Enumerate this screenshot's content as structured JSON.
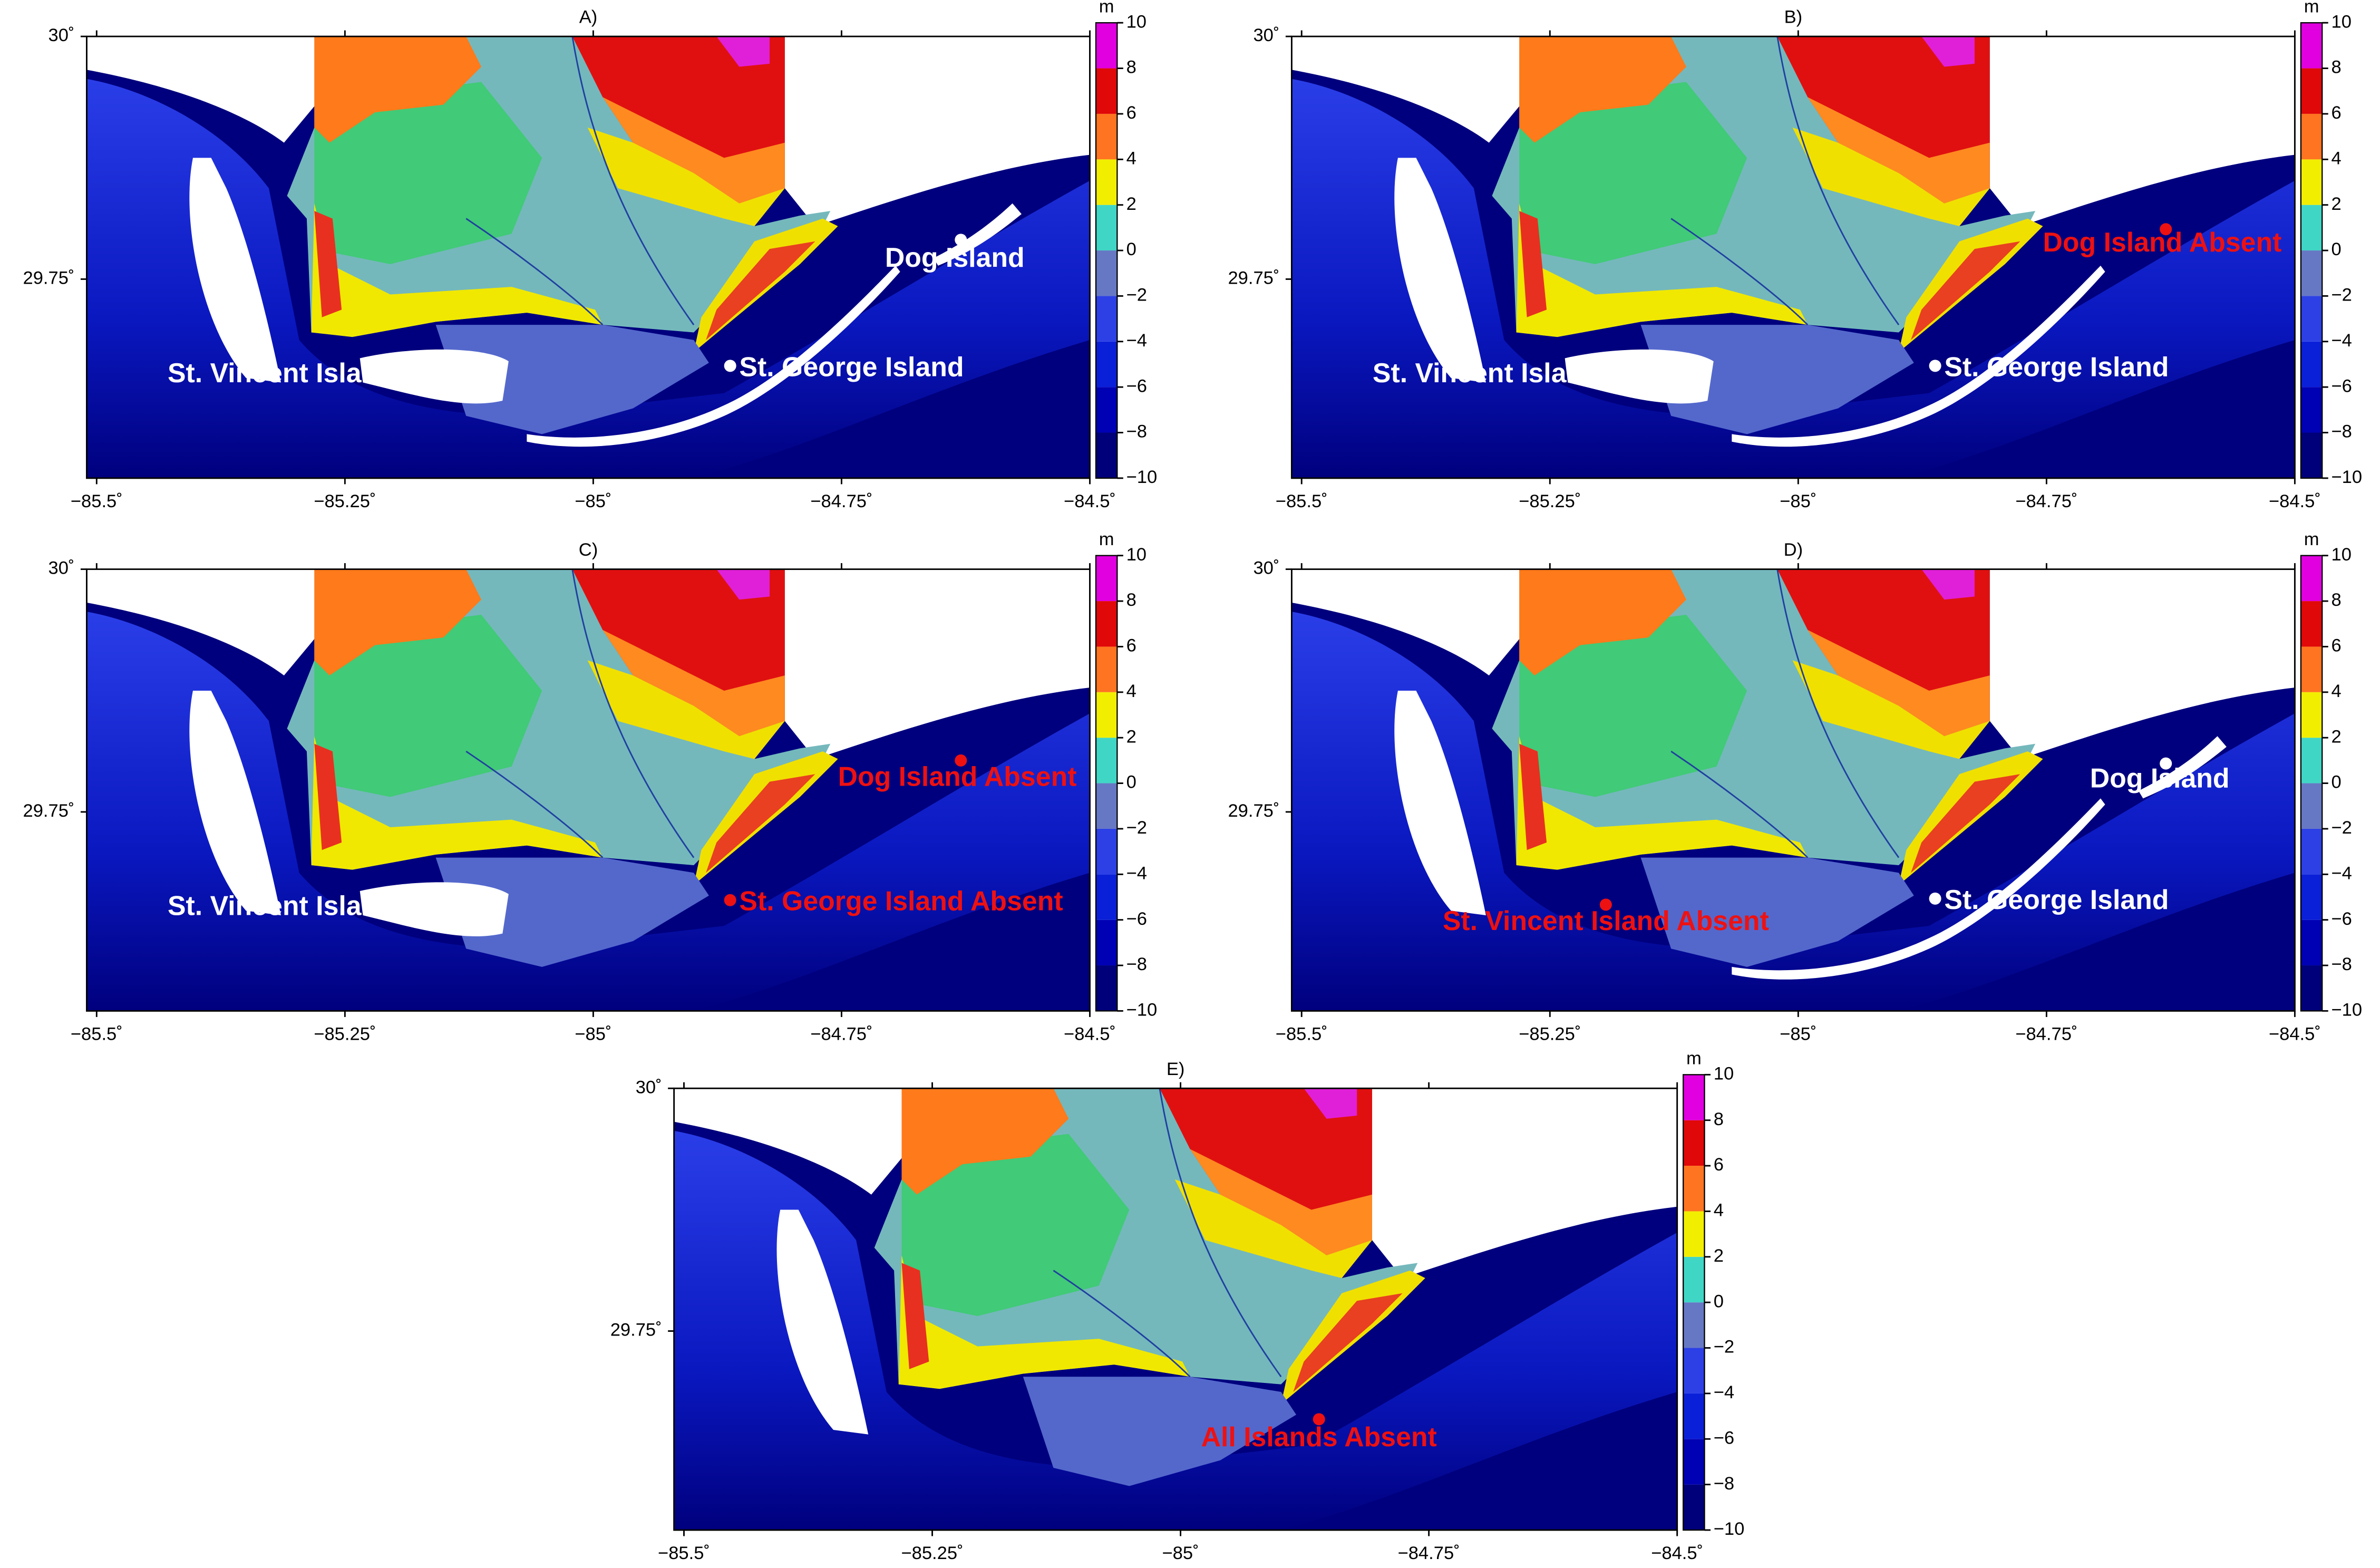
{
  "map": {
    "xlim": [
      -85.51,
      -84.5
    ],
    "ylim": [
      29.545,
      30
    ],
    "xticks": [
      {
        "value": -85.5,
        "label": "−85.5˚"
      },
      {
        "value": -85.25,
        "label": "−85.25˚"
      },
      {
        "value": -85,
        "label": "−85˚"
      },
      {
        "value": -84.75,
        "label": "−84.75˚"
      },
      {
        "value": -84.5,
        "label": "−84.5˚"
      }
    ],
    "yticks": [
      {
        "value": 29.75,
        "label": "29.75˚"
      },
      {
        "value": 30,
        "label": "30˚"
      }
    ],
    "colorbar": {
      "unit": "m",
      "clim": [
        -10,
        10
      ],
      "ticks": [
        {
          "value": -10,
          "label": "−10"
        },
        {
          "value": -8,
          "label": "−8"
        },
        {
          "value": -6,
          "label": "−6"
        },
        {
          "value": -4,
          "label": "−4"
        },
        {
          "value": -2,
          "label": "−2"
        },
        0,
        2,
        4,
        6,
        8,
        10
      ],
      "colors": [
        "#00007a",
        "#0000b4",
        "#0a20d8",
        "#2c40e6",
        "#6678c4",
        "#40d6c6",
        "#f2ee00",
        "#ff7420",
        "#e00808",
        "#e000e0"
      ]
    }
  },
  "panels": [
    {
      "title": "A)",
      "labels": [
        {
          "text": "Dog Island",
          "color": "#ffffff"
        },
        {
          "text": "St. George Island",
          "color": "#ffffff"
        },
        {
          "text": "St. Vincent Island",
          "color": "#ffffff"
        }
      ]
    },
    {
      "title": "B)",
      "labels": [
        {
          "text": "Dog Island Absent",
          "color": "#ee1111"
        },
        {
          "text": "St. George Island",
          "color": "#ffffff"
        },
        {
          "text": "St. Vincent Island",
          "color": "#ffffff"
        }
      ]
    },
    {
      "title": "C)",
      "labels": [
        {
          "text": "Dog Island Absent",
          "color": "#ee1111"
        },
        {
          "text": "St. George Island Absent",
          "color": "#ee1111"
        },
        {
          "text": "St. Vincent Island",
          "color": "#ffffff"
        }
      ]
    },
    {
      "title": "D)",
      "labels": [
        {
          "text": "Dog Island",
          "color": "#ffffff"
        },
        {
          "text": "St. George Island",
          "color": "#ffffff"
        },
        {
          "text": "St. Vincent Island Absent",
          "color": "#ee1111"
        }
      ]
    },
    {
      "title": "E)",
      "labels": [
        {
          "text": "All Islands Absent",
          "color": "#ee1111"
        }
      ]
    }
  ]
}
